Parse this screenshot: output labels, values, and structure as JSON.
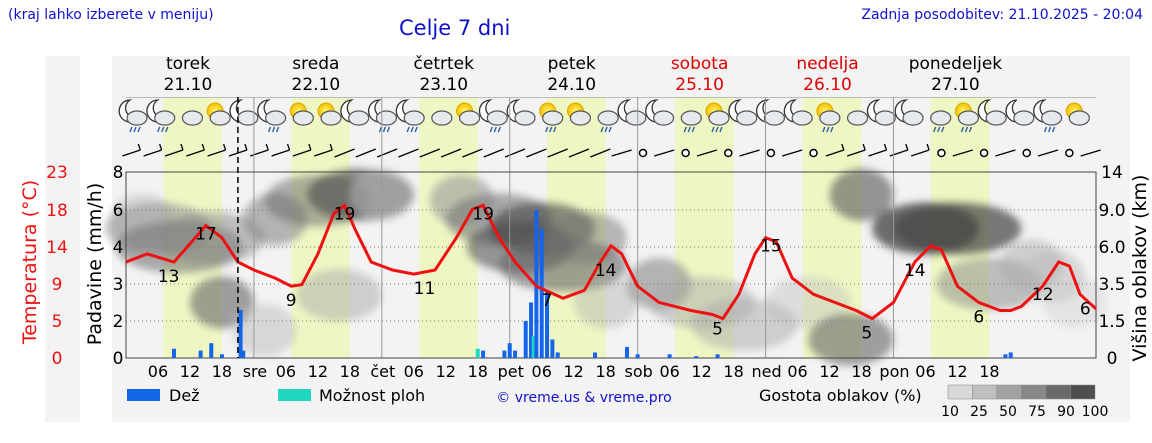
{
  "header": {
    "note": "(kraj lahko izberete v meniju)",
    "title": "Celje 7 dni",
    "updated": "Zadnja posodobitev: 21.10.2025 - 20:04"
  },
  "days": [
    {
      "name": "torek",
      "date": "21.10",
      "weekend": false,
      "short": ""
    },
    {
      "name": "sreda",
      "date": "22.10",
      "weekend": false,
      "short": "sre"
    },
    {
      "name": "četrtek",
      "date": "23.10",
      "weekend": false,
      "short": "čet"
    },
    {
      "name": "petek",
      "date": "24.10",
      "weekend": false,
      "short": "pet"
    },
    {
      "name": "sobota",
      "date": "25.10",
      "weekend": true,
      "short": "sob"
    },
    {
      "name": "nedelja",
      "date": "26.10",
      "weekend": true,
      "short": "ned"
    },
    {
      "name": "ponedeljek",
      "date": "27.10",
      "weekend": false,
      "short": "pon"
    }
  ],
  "axes": {
    "left_temp_label": "Temperatura (°C)",
    "left_temp_ticks": [
      "23",
      "18",
      "14",
      "9",
      "5",
      "0"
    ],
    "left_precip_label": "Padavine (mm/h)",
    "left_precip_ticks": [
      "8",
      "6",
      "4",
      "3",
      "2",
      "0"
    ],
    "right_label": "Višina oblakov (km)",
    "right_ticks": [
      "14",
      "9.0",
      "6.0",
      "3.5",
      "1.5",
      "0"
    ],
    "hour_ticks": [
      "06",
      "12",
      "18"
    ]
  },
  "legend": {
    "rain": "Dež",
    "storm": "Možnost ploh",
    "copyright": "© vreme.us & vreme.pro",
    "density": "Gostota oblakov (%)",
    "density_ticks": [
      "10",
      "25",
      "50",
      "75",
      "90",
      "100"
    ]
  },
  "colors": {
    "temperature": "#ee1111",
    "rain": "#1565e8",
    "storm": "#1fd6c0",
    "weekend": "#dd0000",
    "daylight": "#eef7c4",
    "blue_text": "#1010cc"
  },
  "chart_data": {
    "type": "line",
    "x": "hours since Tue 21.10 00:00",
    "temperature_series": {
      "name": "Temperatura (°C)",
      "points": [
        [
          0,
          12
        ],
        [
          4,
          13
        ],
        [
          9,
          12
        ],
        [
          13,
          15
        ],
        [
          15,
          16.5
        ],
        [
          18,
          15
        ],
        [
          21,
          12
        ],
        [
          24,
          11
        ],
        [
          28,
          10
        ],
        [
          31,
          9
        ],
        [
          33,
          9.2
        ],
        [
          36,
          13
        ],
        [
          39,
          18
        ],
        [
          41,
          19
        ],
        [
          43,
          16
        ],
        [
          46,
          12
        ],
        [
          50,
          11
        ],
        [
          54,
          10.5
        ],
        [
          58,
          11
        ],
        [
          62,
          15
        ],
        [
          65,
          18.5
        ],
        [
          67,
          19
        ],
        [
          70,
          15
        ],
        [
          73,
          12
        ],
        [
          77,
          9
        ],
        [
          82,
          7.5
        ],
        [
          86,
          8.5
        ],
        [
          89,
          12
        ],
        [
          91,
          14
        ],
        [
          93,
          13
        ],
        [
          96,
          9
        ],
        [
          100,
          7
        ],
        [
          106,
          6
        ],
        [
          110,
          5.5
        ],
        [
          112,
          5
        ],
        [
          115,
          8
        ],
        [
          118,
          13
        ],
        [
          120,
          15
        ],
        [
          122,
          14.5
        ],
        [
          125,
          10
        ],
        [
          129,
          8
        ],
        [
          133,
          7
        ],
        [
          137,
          6
        ],
        [
          140,
          5
        ],
        [
          144,
          7
        ],
        [
          148,
          12
        ],
        [
          151,
          14
        ],
        [
          153,
          13.5
        ],
        [
          156,
          9
        ],
        [
          160,
          7
        ],
        [
          164,
          6
        ],
        [
          166,
          6
        ],
        [
          168,
          6.5
        ],
        [
          172,
          9
        ],
        [
          175,
          12
        ],
        [
          177,
          11.5
        ],
        [
          179,
          8
        ],
        [
          182,
          6.2
        ]
      ],
      "labels": [
        [
          8,
          "13"
        ],
        [
          15,
          "17"
        ],
        [
          31,
          "9"
        ],
        [
          41,
          "19"
        ],
        [
          56,
          "11"
        ],
        [
          67,
          "19"
        ],
        [
          79,
          "7"
        ],
        [
          90,
          "14"
        ],
        [
          111,
          "5"
        ],
        [
          121,
          "15"
        ],
        [
          139,
          "5"
        ],
        [
          148,
          "14"
        ],
        [
          160,
          "6"
        ],
        [
          172,
          "12"
        ],
        [
          180,
          "6"
        ]
      ]
    },
    "precip_bars": [
      {
        "h": 9,
        "v": 0.5,
        "type": "rain"
      },
      {
        "h": 14,
        "v": 0.4,
        "type": "rain"
      },
      {
        "h": 16,
        "v": 0.8,
        "type": "rain"
      },
      {
        "h": 18,
        "v": 0.2,
        "type": "rain"
      },
      {
        "h": 21.5,
        "v": 2.3,
        "type": "rain"
      },
      {
        "h": 22,
        "v": 0.4,
        "type": "rain"
      },
      {
        "h": 66,
        "v": 0.5,
        "type": "storm"
      },
      {
        "h": 67,
        "v": 0.4,
        "type": "rain"
      },
      {
        "h": 71,
        "v": 0.4,
        "type": "rain"
      },
      {
        "h": 72,
        "v": 0.8,
        "type": "rain"
      },
      {
        "h": 73,
        "v": 0.4,
        "type": "rain"
      },
      {
        "h": 75,
        "v": 2,
        "type": "rain"
      },
      {
        "h": 76,
        "v": 2.5,
        "type": "rain"
      },
      {
        "h": 76.5,
        "v": 1.2,
        "type": "storm"
      },
      {
        "h": 77,
        "v": 6,
        "type": "rain"
      },
      {
        "h": 78,
        "v": 5,
        "type": "rain"
      },
      {
        "h": 79,
        "v": 2.8,
        "type": "rain"
      },
      {
        "h": 80,
        "v": 1,
        "type": "rain"
      },
      {
        "h": 81,
        "v": 0.3,
        "type": "rain"
      },
      {
        "h": 88,
        "v": 0.3,
        "type": "rain"
      },
      {
        "h": 94,
        "v": 0.6,
        "type": "rain"
      },
      {
        "h": 96,
        "v": 0.2,
        "type": "rain"
      },
      {
        "h": 102,
        "v": 0.2,
        "type": "rain"
      },
      {
        "h": 107,
        "v": 0.1,
        "type": "rain"
      },
      {
        "h": 111,
        "v": 0.2,
        "type": "rain"
      },
      {
        "h": 165,
        "v": 0.2,
        "type": "rain"
      },
      {
        "h": 166,
        "v": 0.3,
        "type": "rain"
      }
    ],
    "now_hour": 21
  }
}
